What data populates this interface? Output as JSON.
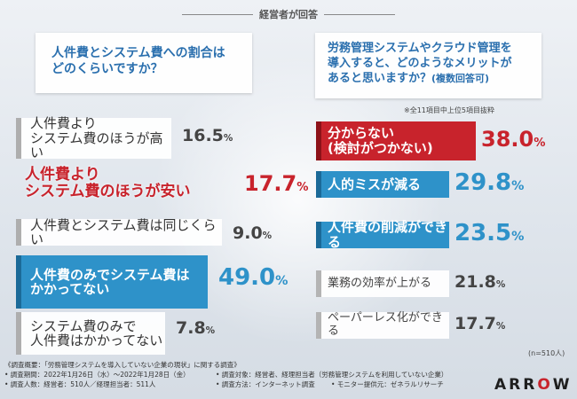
{
  "header": {
    "title": "経営者が回答"
  },
  "left_question": {
    "line1": "人件費とシステム費への割合は",
    "line2": "どのくらいですか？"
  },
  "right_question": {
    "line1": "労務管理システムやクラウド管理を",
    "line2": "導入すると、どのようなメリットが",
    "line3": "あると思いますか？",
    "line3_small": "(複数回答可)",
    "note": "※全11項目中上位5項目抜粋"
  },
  "chart_data": [
    {
      "type": "bar",
      "categories": [
        "人件費よりシステム費のほうが高い",
        "人件費よりシステム費のほうが安い",
        "人件費とシステム費は同じくらい",
        "人件費のみでシステム費はかかってない",
        "システム費のみで人件費はかかってない"
      ],
      "values": [
        16.5,
        17.7,
        9.0,
        49.0,
        7.8
      ],
      "value_labels": [
        {
          "num": "16.5",
          "unit": "%"
        },
        {
          "num": "17.7",
          "unit": "%"
        },
        {
          "num": "9.0",
          "unit": "%"
        },
        {
          "num": "49.0",
          "unit": "%"
        },
        {
          "num": "7.8",
          "unit": "%"
        }
      ],
      "label_lines": [
        [
          "人件費より",
          "システム費のほうが高い"
        ],
        [
          "人件費より",
          "システム費のほうが安い"
        ],
        [
          "人件費とシステム費は同じくらい"
        ],
        [
          "人件費のみでシステム費は",
          "かかってない"
        ],
        [
          "システム費のみで",
          "人件費はかかってない"
        ]
      ]
    },
    {
      "type": "bar",
      "categories": [
        "分からない（検討がつかない）",
        "人的ミスが減る",
        "人件費の削減ができる",
        "業務の効率が上がる",
        "ペーパーレス化ができる"
      ],
      "values": [
        38.0,
        29.8,
        23.5,
        21.8,
        17.7
      ],
      "value_labels": [
        {
          "num": "38.0",
          "unit": "%"
        },
        {
          "num": "29.8",
          "unit": "%"
        },
        {
          "num": "23.5",
          "unit": "%"
        },
        {
          "num": "21.8",
          "unit": "%"
        },
        {
          "num": "17.7",
          "unit": "%"
        }
      ],
      "label_lines": [
        [
          "分からない",
          "(検討がつかない)"
        ],
        [
          "人的ミスが減る"
        ],
        [
          "人件費の削減ができる"
        ],
        [
          "業務の効率が上がる"
        ],
        [
          "ペーパーレス化ができる"
        ]
      ],
      "sample_note": "(n=510人)"
    }
  ],
  "colors": {
    "highlight_red": "#c8232c",
    "highlight_blue": "#2e92c9",
    "neutral_grey": "#b4b4b4"
  },
  "footer": {
    "line1": "《調査概要：「労務管理システムを導入していない企業の現状」に関する調査》",
    "line2": "• 調査期間：2022年1月26日（水）〜2022年1月28日（金）",
    "line3": "• 調査人数：経営者：510人／経理担当者：511人",
    "line2b": "• 調査対象：経営者、経理担当者（労務管理システムを利用していない企業）",
    "line3b": "• 調査方法：インターネット調査",
    "line3c": "• モニター提供元：ゼネラルリサーチ"
  },
  "logo": {
    "text_a": "ARR",
    "text_o": "O",
    "text_b": "W"
  }
}
